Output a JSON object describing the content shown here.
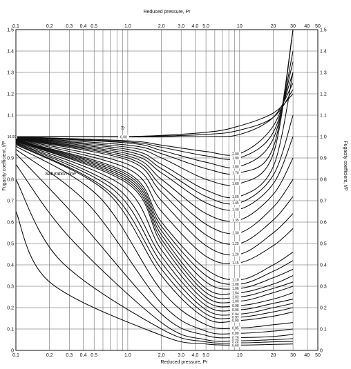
{
  "chart_data": {
    "type": "line",
    "title": "",
    "xlabel": "Reduced pressure, Pr",
    "ylabel": "Fugacity coefficient, f/P",
    "xscale": "log",
    "xlim": [
      0.1,
      50
    ],
    "ylim": [
      0,
      1.5
    ],
    "x_ticks": [
      {
        "v": 0.1,
        "label": "0.1"
      },
      {
        "v": 0.2,
        "label": "0.2"
      },
      {
        "v": 0.3,
        "label": "0.3"
      },
      {
        "v": 0.4,
        "label": "0.4"
      },
      {
        "v": 0.5,
        "label": "0.5"
      },
      {
        "v": 1,
        "label": "1.0"
      },
      {
        "v": 2,
        "label": "2.0"
      },
      {
        "v": 3,
        "label": "3.0"
      },
      {
        "v": 4,
        "label": "4.0"
      },
      {
        "v": 5,
        "label": "5.0"
      },
      {
        "v": 10,
        "label": "10"
      },
      {
        "v": 20,
        "label": "20"
      },
      {
        "v": 30,
        "label": "30"
      },
      {
        "v": 40,
        "label": "40"
      },
      {
        "v": 50,
        "label": "50"
      }
    ],
    "y_ticks": [
      {
        "v": 0,
        "label": "0"
      },
      {
        "v": 0.1,
        "label": "0.1"
      },
      {
        "v": 0.2,
        "label": "0.2"
      },
      {
        "v": 0.3,
        "label": "0.3"
      },
      {
        "v": 0.4,
        "label": "0.4"
      },
      {
        "v": 0.5,
        "label": "0.5"
      },
      {
        "v": 0.6,
        "label": "0.6"
      },
      {
        "v": 0.7,
        "label": "0.7"
      },
      {
        "v": 0.8,
        "label": "0.8"
      },
      {
        "v": 0.9,
        "label": "0.9"
      },
      {
        "v": 1.0,
        "label": "1.0"
      },
      {
        "v": 1.1,
        "label": "1.1"
      },
      {
        "v": 1.2,
        "label": "1.2"
      },
      {
        "v": 1.3,
        "label": "1.3"
      },
      {
        "v": 1.4,
        "label": "1.4"
      },
      {
        "v": 1.5,
        "label": "1.5"
      }
    ],
    "grid": true,
    "annotations": [
      {
        "text": "Tr",
        "x": 0.9,
        "y": 1.03
      },
      {
        "text": "Saturation line",
        "x": 0.25,
        "y": 0.82
      }
    ],
    "series": [
      {
        "name": "15.00",
        "points": [
          [
            0.1,
            1.0
          ],
          [
            1,
            1.0
          ],
          [
            5,
            1.02
          ],
          [
            10,
            1.05
          ],
          [
            20,
            1.11
          ],
          [
            30,
            1.2
          ]
        ]
      },
      {
        "name": "10.00",
        "points": [
          [
            0.1,
            1.0
          ],
          [
            1,
            1.0
          ],
          [
            5,
            1.01
          ],
          [
            10,
            1.03
          ],
          [
            20,
            1.09
          ],
          [
            30,
            1.22
          ]
        ]
      },
      {
        "name": "6.00",
        "points": [
          [
            0.1,
            1.0
          ],
          [
            1,
            0.998
          ],
          [
            5,
            1.0
          ],
          [
            10,
            1.01
          ],
          [
            20,
            1.09
          ],
          [
            30,
            1.25
          ]
        ]
      },
      {
        "name": "2.00",
        "points": [
          [
            0.1,
            0.999
          ],
          [
            1,
            0.98
          ],
          [
            2,
            0.96
          ],
          [
            5,
            0.93
          ],
          [
            10,
            0.92
          ],
          [
            20,
            1.05
          ],
          [
            30,
            1.3
          ]
        ]
      },
      {
        "name": "1.90",
        "points": [
          [
            0.1,
            0.998
          ],
          [
            1,
            0.975
          ],
          [
            2,
            0.95
          ],
          [
            5,
            0.91
          ],
          [
            10,
            0.9
          ],
          [
            20,
            1.02
          ],
          [
            30,
            1.35
          ]
        ]
      },
      {
        "name": "1.80",
        "points": [
          [
            0.1,
            0.997
          ],
          [
            1,
            0.97
          ],
          [
            2,
            0.935
          ],
          [
            5,
            0.88
          ],
          [
            10,
            0.86
          ],
          [
            20,
            0.99
          ],
          [
            30,
            1.4
          ]
        ]
      },
      {
        "name": "1.70",
        "points": [
          [
            0.1,
            0.996
          ],
          [
            1,
            0.96
          ],
          [
            2,
            0.92
          ],
          [
            5,
            0.85
          ],
          [
            10,
            0.83
          ],
          [
            20,
            0.95
          ],
          [
            30,
            1.5
          ]
        ]
      },
      {
        "name": "1.60",
        "points": [
          [
            0.1,
            0.995
          ],
          [
            1,
            0.95
          ],
          [
            2,
            0.9
          ],
          [
            5,
            0.8
          ],
          [
            10,
            0.78
          ],
          [
            20,
            0.92
          ],
          [
            30,
            1.5
          ]
        ]
      },
      {
        "name": "1.50",
        "points": [
          [
            0.1,
            0.994
          ],
          [
            1,
            0.94
          ],
          [
            2,
            0.87
          ],
          [
            5,
            0.75
          ],
          [
            10,
            0.72
          ],
          [
            20,
            0.86
          ],
          [
            30,
            1.3
          ]
        ]
      },
      {
        "name": "1.45",
        "points": [
          [
            0.1,
            0.993
          ],
          [
            1,
            0.93
          ],
          [
            2,
            0.85
          ],
          [
            5,
            0.72
          ],
          [
            10,
            0.69
          ],
          [
            20,
            0.82
          ],
          [
            30,
            1.1
          ]
        ]
      },
      {
        "name": "1.40",
        "points": [
          [
            0.1,
            0.992
          ],
          [
            1,
            0.92
          ],
          [
            2,
            0.83
          ],
          [
            5,
            0.69
          ],
          [
            10,
            0.66
          ],
          [
            20,
            0.78
          ],
          [
            30,
            1.0
          ]
        ]
      },
      {
        "name": "1.35",
        "points": [
          [
            0.1,
            0.991
          ],
          [
            1,
            0.91
          ],
          [
            2,
            0.8
          ],
          [
            5,
            0.64
          ],
          [
            10,
            0.61
          ],
          [
            20,
            0.73
          ],
          [
            30,
            0.9
          ]
        ]
      },
      {
        "name": "1.30",
        "points": [
          [
            0.1,
            0.99
          ],
          [
            1,
            0.9
          ],
          [
            2,
            0.77
          ],
          [
            5,
            0.59
          ],
          [
            10,
            0.55
          ],
          [
            20,
            0.67
          ],
          [
            30,
            0.8
          ]
        ]
      },
      {
        "name": "1.25",
        "points": [
          [
            0.1,
            0.988
          ],
          [
            1,
            0.89
          ],
          [
            2,
            0.74
          ],
          [
            5,
            0.54
          ],
          [
            10,
            0.5
          ],
          [
            20,
            0.61
          ],
          [
            30,
            0.72
          ]
        ]
      },
      {
        "name": "1.20",
        "points": [
          [
            0.1,
            0.987
          ],
          [
            1,
            0.87
          ],
          [
            2,
            0.7
          ],
          [
            5,
            0.49
          ],
          [
            10,
            0.45
          ],
          [
            20,
            0.55
          ],
          [
            30,
            0.64
          ]
        ]
      },
      {
        "name": "1.15",
        "points": [
          [
            0.1,
            0.985
          ],
          [
            1,
            0.85
          ],
          [
            2,
            0.65
          ],
          [
            5,
            0.44
          ],
          [
            10,
            0.41
          ],
          [
            20,
            0.49
          ],
          [
            30,
            0.57
          ]
        ]
      },
      {
        "name": "1.10",
        "points": [
          [
            0.1,
            0.983
          ],
          [
            1,
            0.83
          ],
          [
            2,
            0.6
          ],
          [
            5,
            0.38
          ],
          [
            10,
            0.33
          ],
          [
            20,
            0.4
          ],
          [
            30,
            0.46
          ]
        ]
      },
      {
        "name": "1.08",
        "points": [
          [
            0.1,
            0.982
          ],
          [
            1,
            0.82
          ],
          [
            2,
            0.58
          ],
          [
            5,
            0.35
          ],
          [
            10,
            0.31
          ],
          [
            20,
            0.37
          ],
          [
            30,
            0.42
          ]
        ]
      },
      {
        "name": "1.06",
        "points": [
          [
            0.1,
            0.981
          ],
          [
            1,
            0.81
          ],
          [
            2,
            0.56
          ],
          [
            5,
            0.32
          ],
          [
            10,
            0.29
          ],
          [
            20,
            0.34
          ],
          [
            30,
            0.38
          ]
        ]
      },
      {
        "name": "1.04",
        "points": [
          [
            0.1,
            0.98
          ],
          [
            1,
            0.8
          ],
          [
            2,
            0.54
          ],
          [
            5,
            0.29
          ],
          [
            10,
            0.27
          ],
          [
            20,
            0.31
          ],
          [
            30,
            0.35
          ]
        ]
      },
      {
        "name": "1.02",
        "points": [
          [
            0.1,
            0.979
          ],
          [
            1,
            0.79
          ],
          [
            2,
            0.52
          ],
          [
            5,
            0.27
          ],
          [
            10,
            0.25
          ],
          [
            20,
            0.29
          ],
          [
            30,
            0.32
          ]
        ]
      },
      {
        "name": "1.00",
        "points": [
          [
            0.1,
            0.978
          ],
          [
            1,
            0.78
          ],
          [
            2,
            0.5
          ],
          [
            5,
            0.25
          ],
          [
            10,
            0.23
          ],
          [
            20,
            0.27
          ],
          [
            30,
            0.3
          ]
        ]
      },
      {
        "name": "0.98",
        "points": [
          [
            0.1,
            0.975
          ],
          [
            0.9,
            0.77
          ],
          [
            2,
            0.47
          ],
          [
            5,
            0.23
          ],
          [
            10,
            0.21
          ],
          [
            20,
            0.24
          ],
          [
            30,
            0.27
          ]
        ]
      },
      {
        "name": "0.96",
        "points": [
          [
            0.1,
            0.972
          ],
          [
            0.8,
            0.76
          ],
          [
            2,
            0.44
          ],
          [
            5,
            0.21
          ],
          [
            10,
            0.19
          ],
          [
            20,
            0.22
          ],
          [
            30,
            0.24
          ]
        ]
      },
      {
        "name": "0.94",
        "points": [
          [
            0.1,
            0.97
          ],
          [
            0.75,
            0.75
          ],
          [
            2,
            0.41
          ],
          [
            5,
            0.19
          ],
          [
            10,
            0.17
          ],
          [
            20,
            0.2
          ],
          [
            30,
            0.22
          ]
        ]
      },
      {
        "name": "0.92",
        "points": [
          [
            0.1,
            0.967
          ],
          [
            0.7,
            0.74
          ],
          [
            2,
            0.38
          ],
          [
            5,
            0.17
          ],
          [
            10,
            0.155
          ],
          [
            20,
            0.18
          ],
          [
            30,
            0.2
          ]
        ]
      },
      {
        "name": "0.90",
        "points": [
          [
            0.1,
            0.963
          ],
          [
            0.65,
            0.74
          ],
          [
            2,
            0.35
          ],
          [
            5,
            0.15
          ],
          [
            10,
            0.14
          ],
          [
            20,
            0.16
          ],
          [
            30,
            0.18
          ]
        ]
      },
      {
        "name": "0.85",
        "points": [
          [
            0.1,
            0.955
          ],
          [
            0.55,
            0.72
          ],
          [
            2,
            0.28
          ],
          [
            5,
            0.12
          ],
          [
            10,
            0.105
          ],
          [
            20,
            0.12
          ],
          [
            30,
            0.13
          ]
        ]
      },
      {
        "name": "0.80",
        "points": [
          [
            0.1,
            0.94
          ],
          [
            0.45,
            0.68
          ],
          [
            2,
            0.22
          ],
          [
            5,
            0.09
          ],
          [
            10,
            0.08
          ],
          [
            20,
            0.09
          ],
          [
            30,
            0.1
          ]
        ]
      },
      {
        "name": "0.75",
        "points": [
          [
            0.1,
            0.92
          ],
          [
            0.35,
            0.62
          ],
          [
            2,
            0.17
          ],
          [
            5,
            0.07
          ],
          [
            10,
            0.06
          ],
          [
            20,
            0.065
          ],
          [
            30,
            0.075
          ]
        ]
      },
      {
        "name": "0.70",
        "points": [
          [
            0.1,
            0.87
          ],
          [
            0.3,
            0.53
          ],
          [
            2,
            0.13
          ],
          [
            5,
            0.05
          ],
          [
            10,
            0.045
          ],
          [
            20,
            0.05
          ],
          [
            30,
            0.055
          ]
        ]
      },
      {
        "name": "0.65",
        "points": [
          [
            0.1,
            0.8
          ],
          [
            0.25,
            0.42
          ],
          [
            2,
            0.1
          ],
          [
            5,
            0.04
          ],
          [
            10,
            0.035
          ],
          [
            20,
            0.04
          ],
          [
            30,
            0.042
          ]
        ]
      },
      {
        "name": "0.60",
        "points": [
          [
            0.1,
            0.65
          ],
          [
            0.2,
            0.32
          ],
          [
            2,
            0.07
          ],
          [
            5,
            0.03
          ],
          [
            10,
            0.025
          ],
          [
            20,
            0.028
          ],
          [
            30,
            0.03
          ]
        ]
      }
    ]
  }
}
